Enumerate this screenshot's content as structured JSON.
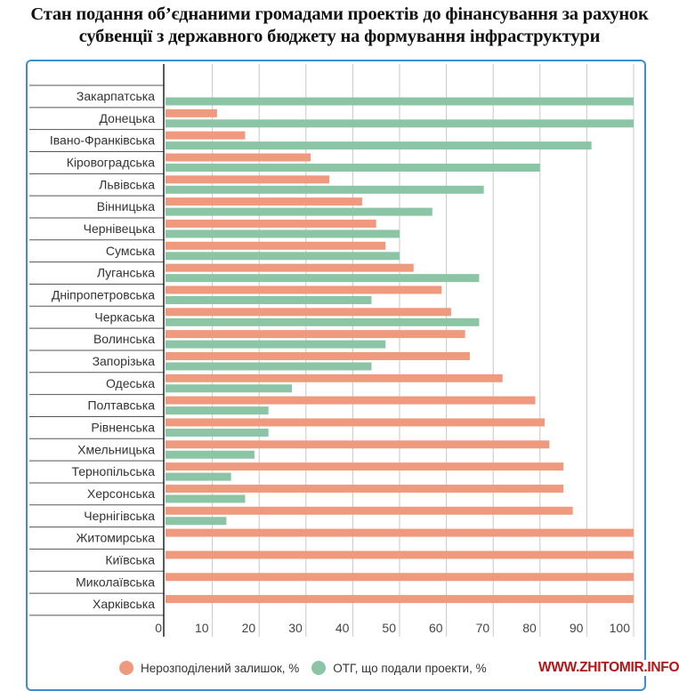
{
  "title_line1": "Стан подання об’єднаними громадами проектів до фінансування за рахунок",
  "title_line2": "субвенції з державного бюджету на формування інфраструктури",
  "watermark": "WWW.ZHITOMIR.INFO",
  "chart_data": {
    "type": "bar",
    "orientation": "horizontal",
    "title": "Стан подання об’єднаними громадами проектів до фінансування за рахунок субвенції з державного бюджету на формування інфраструктури",
    "categories": [
      "Закарпатська",
      "Донецька",
      "Івано-Франківська",
      "Кіровоградська",
      "Львівська",
      "Вінницька",
      "Чернівецька",
      "Сумська",
      "Луганська",
      "Дніпропетровська",
      "Черкаська",
      "Волинська",
      "Запорізька",
      "Одеська",
      "Полтавська",
      "Рівненська",
      "Хмельницька",
      "Тернопільська",
      "Херсонська",
      "Чернігівська",
      "Житомирська",
      "Київська",
      "Миколаївська",
      "Харківська"
    ],
    "series": [
      {
        "name": "Нерозподілений залишок, %",
        "color": "#ef9a7e",
        "values": [
          0,
          11,
          17,
          31,
          35,
          42,
          45,
          47,
          53,
          59,
          61,
          64,
          65,
          72,
          79,
          81,
          82,
          85,
          85,
          87,
          100,
          100,
          100,
          100
        ]
      },
      {
        "name": "ОТГ, що подали проекти, %",
        "color": "#8cc5a6",
        "values": [
          100,
          100,
          91,
          80,
          68,
          57,
          50,
          50,
          67,
          44,
          67,
          47,
          44,
          27,
          22,
          22,
          19,
          14,
          17,
          13,
          0,
          0,
          0,
          0
        ]
      }
    ],
    "xlim": [
      0,
      100
    ],
    "xticks": [
      "0",
      "10",
      "20",
      "30",
      "40",
      "50",
      "60",
      "70",
      "80",
      "90",
      "100"
    ],
    "grid": true,
    "legend_position": "bottom",
    "legend_labels": [
      "Нерозподілений залишок, %",
      "ОТГ, що подали проекти, %"
    ]
  }
}
